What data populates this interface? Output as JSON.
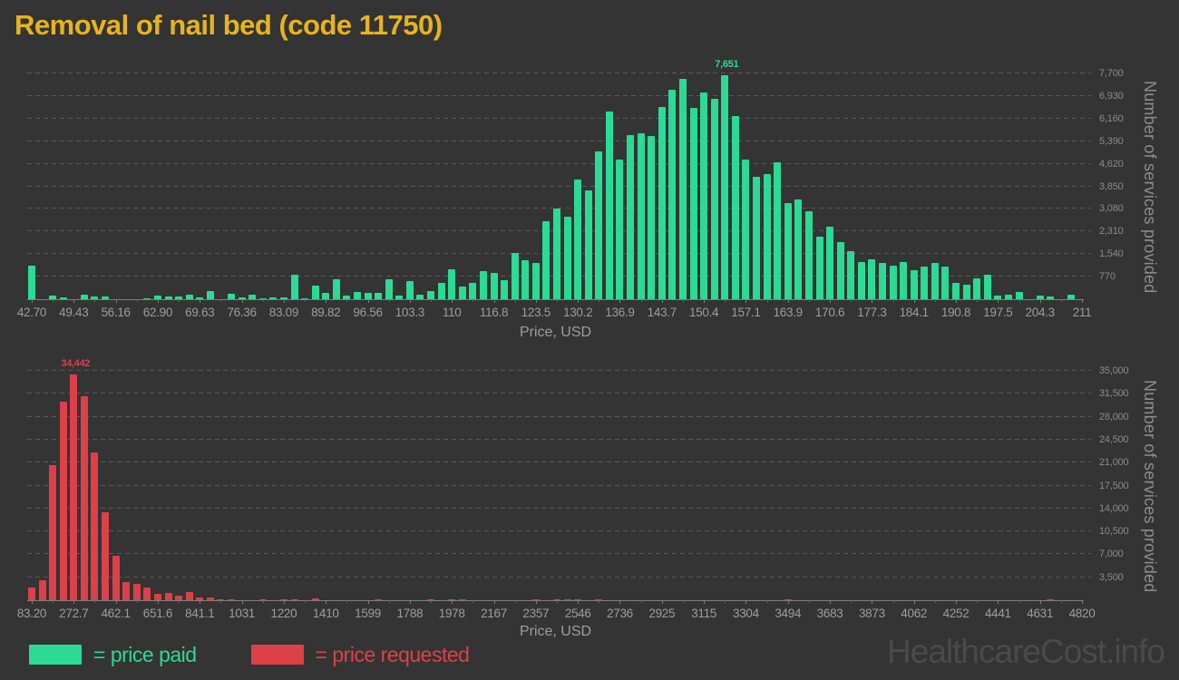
{
  "title": "Removal of nail bed (code 11750)",
  "title_color": "#E7B41A",
  "watermark": "HealthcareCost.info",
  "legend": {
    "paid_label": "= price paid",
    "requested_label": "= price requested",
    "paid_color": "#2BDA95",
    "requested_color": "#DD4049"
  },
  "chart_data": [
    {
      "type": "bar",
      "name": "price paid",
      "xlabel": "Price, USD",
      "ylabel": "Number of services provided",
      "color": "#2BDA95",
      "ylim": [
        0,
        7700
      ],
      "x_start": 42.7,
      "x_end": 211,
      "bin_width": 1.683,
      "grid": "dashed-horizontal",
      "peak_label": "7,651",
      "x_tick_labels": [
        "42.70",
        "49.43",
        "56.16",
        "62.90",
        "69.63",
        "76.36",
        "83.09",
        "89.82",
        "96.56",
        "103.3",
        "110",
        "116.8",
        "123.5",
        "130.2",
        "136.9",
        "143.7",
        "150.4",
        "157.1",
        "163.9",
        "170.6",
        "177.3",
        "184.1",
        "190.8",
        "197.5",
        "204.3",
        "211"
      ],
      "y_tick_labels": [
        "770",
        "1,540",
        "2,310",
        "3,080",
        "3,850",
        "4,620",
        "5,390",
        "6,160",
        "6,930",
        "7,700"
      ],
      "values": [
        1150,
        0,
        110,
        55,
        0,
        160,
        85,
        85,
        0,
        0,
        0,
        30,
        110,
        90,
        100,
        160,
        50,
        270,
        0,
        180,
        60,
        170,
        40,
        50,
        60,
        830,
        40,
        460,
        205,
        680,
        115,
        260,
        205,
        215,
        680,
        135,
        625,
        155,
        290,
        565,
        1030,
        420,
        545,
        955,
        885,
        645,
        1570,
        1345,
        1245,
        2650,
        3100,
        2800,
        4080,
        3720,
        5030,
        6400,
        4770,
        5600,
        5670,
        5570,
        6570,
        7130,
        7510,
        6510,
        7050,
        6820,
        7651,
        6250,
        4750,
        4180,
        4275,
        4685,
        3290,
        3400,
        3000,
        2130,
        2460,
        1960,
        1640,
        1280,
        1375,
        1230,
        1160,
        1260,
        975,
        1105,
        1240,
        1105,
        565,
        490,
        700,
        850,
        135,
        155,
        255,
        0,
        135,
        80,
        0,
        155,
        0
      ]
    },
    {
      "type": "bar",
      "name": "price requested",
      "xlabel": "Price, USD",
      "ylabel": "Number of services provided",
      "color": "#DD4049",
      "ylim": [
        0,
        35000
      ],
      "x_start": 83.2,
      "x_end": 4820,
      "bin_width": 47.37,
      "grid": "dashed-horizontal",
      "peak_label": "34,442",
      "x_tick_labels": [
        "83.20",
        "272.7",
        "462.1",
        "651.6",
        "841.1",
        "1031",
        "1220",
        "1410",
        "1599",
        "1788",
        "1978",
        "2167",
        "2357",
        "2546",
        "2736",
        "2925",
        "3115",
        "3304",
        "3494",
        "3683",
        "3873",
        "4062",
        "4252",
        "4441",
        "4631",
        "4820"
      ],
      "y_tick_labels": [
        "3,500",
        "7,000",
        "10,500",
        "14,000",
        "17,500",
        "21,000",
        "24,500",
        "28,000",
        "31,500",
        "35,000"
      ],
      "values": [
        1930,
        3085,
        20585,
        30255,
        34442,
        31085,
        22565,
        13355,
        6770,
        2760,
        2530,
        1980,
        920,
        1060,
        690,
        1240,
        370,
        370,
        150,
        100,
        0,
        0,
        140,
        0,
        120,
        130,
        0,
        230,
        0,
        0,
        0,
        0,
        0,
        130,
        0,
        0,
        0,
        0,
        120,
        0,
        130,
        120,
        0,
        0,
        0,
        0,
        0,
        0,
        130,
        0,
        140,
        130,
        120,
        0,
        130,
        0,
        0,
        0,
        0,
        0,
        0,
        0,
        0,
        0,
        0,
        0,
        0,
        0,
        0,
        0,
        0,
        0,
        130,
        0,
        0,
        0,
        0,
        0,
        0,
        0,
        0,
        0,
        0,
        0,
        0,
        0,
        0,
        0,
        0,
        0,
        0,
        0,
        0,
        0,
        0,
        0,
        0,
        140,
        0,
        0,
        0
      ]
    }
  ]
}
